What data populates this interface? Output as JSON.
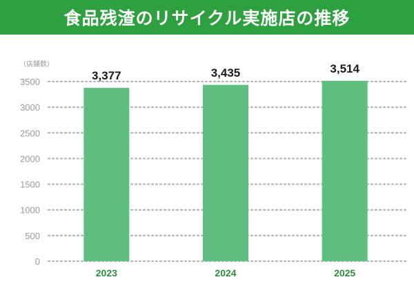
{
  "colors": {
    "header_bg": "#2ea040",
    "bar": "#5fbf80",
    "category_text": "#2e8b3a",
    "grid": "#b4b4b4"
  },
  "chart_data": {
    "type": "bar",
    "title": "食品残渣のリサイクル実施店の推移",
    "ylabel": "（店舗数）",
    "xlabel": "",
    "categories": [
      "2023",
      "2024",
      "2025"
    ],
    "values": [
      3377,
      3435,
      3514
    ],
    "value_labels": [
      "3,377",
      "3,435",
      "3,514"
    ],
    "ylim": [
      0,
      3500
    ],
    "yticks": [
      0,
      500,
      1000,
      1500,
      2000,
      2500,
      3000,
      3500
    ],
    "grid": "horizontal dotted"
  }
}
